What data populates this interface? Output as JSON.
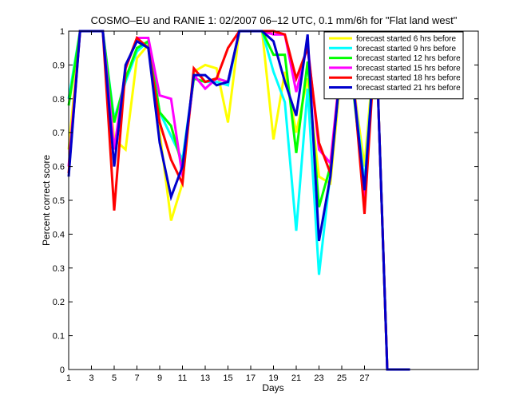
{
  "chart_data": {
    "type": "line",
    "title": "COSMO–EU and RANIE 1: 02/2007 06–12 UTC, 0.1 mm/6h for \"Flat land west\"",
    "xlabel": "Days",
    "ylabel": "Percent correct score",
    "xlim": [
      1,
      37
    ],
    "ylim": [
      0,
      1
    ],
    "x_ticks": [
      1,
      3,
      5,
      7,
      9,
      11,
      13,
      15,
      17,
      19,
      21,
      23,
      25,
      27
    ],
    "y_ticks": [
      0,
      0.1,
      0.2,
      0.3,
      0.4,
      0.5,
      0.6,
      0.7,
      0.8,
      0.9,
      1
    ],
    "x_tick_labels": [
      "1",
      "3",
      "5",
      "7",
      "9",
      "11",
      "13",
      "15",
      "17",
      "19",
      "21",
      "23",
      "25",
      "27"
    ],
    "y_tick_labels": [
      "0",
      "0.1",
      "0.2",
      "0.3",
      "0.4",
      "0.5",
      "0.6",
      "0.7",
      "0.8",
      "0.9",
      "1"
    ],
    "grid": false,
    "legend_position": "top-right",
    "x": [
      1,
      2,
      3,
      4,
      5,
      6,
      7,
      8,
      9,
      10,
      11,
      12,
      13,
      14,
      15,
      16,
      17,
      18,
      19,
      20,
      21,
      22,
      23,
      24,
      25,
      26,
      27,
      28,
      29,
      30,
      31
    ],
    "series": [
      {
        "name": "forecast started 6 hrs before",
        "color": "#ffff00",
        "values": [
          0.65,
          1.0,
          1.0,
          1.0,
          0.68,
          0.65,
          0.92,
          0.96,
          0.7,
          0.44,
          0.55,
          0.88,
          0.9,
          0.89,
          0.73,
          1.0,
          1.0,
          1.0,
          0.68,
          0.88,
          0.7,
          0.86,
          0.57,
          0.55,
          0.9,
          0.85,
          0.6,
          1.0,
          0,
          0,
          0
        ]
      },
      {
        "name": "forecast started 9 hrs before",
        "color": "#00ffff",
        "values": [
          0.8,
          1.0,
          1.0,
          1.0,
          0.74,
          0.85,
          0.94,
          0.97,
          0.76,
          0.69,
          0.62,
          0.86,
          0.85,
          0.85,
          0.84,
          1.0,
          1.0,
          1.0,
          0.88,
          0.79,
          0.41,
          0.83,
          0.28,
          0.58,
          0.92,
          0.85,
          0.55,
          1.0,
          0,
          0,
          0
        ]
      },
      {
        "name": "forecast started 12 hrs before",
        "color": "#00ff00",
        "values": [
          0.78,
          1.0,
          1.0,
          1.0,
          0.73,
          0.86,
          0.95,
          0.97,
          0.76,
          0.72,
          0.6,
          0.86,
          0.85,
          0.86,
          0.85,
          1.0,
          1.0,
          1.0,
          0.93,
          0.93,
          0.64,
          0.91,
          0.48,
          0.6,
          0.92,
          0.83,
          0.52,
          1.0,
          0,
          0,
          0
        ]
      },
      {
        "name": "forecast started 15 hrs before",
        "color": "#ff00ff",
        "values": [
          0.6,
          1.0,
          1.0,
          1.0,
          0.65,
          0.89,
          0.98,
          0.98,
          0.81,
          0.8,
          0.57,
          0.87,
          0.83,
          0.86,
          0.85,
          1.0,
          1.0,
          1.0,
          0.99,
          0.99,
          0.82,
          0.96,
          0.65,
          0.61,
          0.93,
          0.86,
          0.5,
          1.0,
          0,
          0,
          0
        ]
      },
      {
        "name": "forecast started 18 hrs before",
        "color": "#ff0000",
        "values": [
          0.58,
          1.0,
          1.0,
          1.0,
          0.47,
          0.89,
          0.98,
          0.95,
          0.73,
          0.62,
          0.55,
          0.89,
          0.85,
          0.86,
          0.95,
          1.0,
          1.0,
          1.0,
          1.0,
          0.99,
          0.86,
          0.95,
          0.67,
          0.58,
          0.93,
          0.86,
          0.46,
          1.0,
          0,
          0,
          0
        ]
      },
      {
        "name": "forecast started 21 hrs before",
        "color": "#0000cc",
        "values": [
          0.57,
          1.0,
          1.0,
          1.0,
          0.6,
          0.9,
          0.97,
          0.95,
          0.67,
          0.51,
          0.6,
          0.87,
          0.87,
          0.84,
          0.85,
          1.0,
          1.0,
          1.0,
          0.97,
          0.85,
          0.75,
          0.99,
          0.38,
          0.57,
          0.93,
          0.84,
          0.53,
          1.0,
          0,
          0,
          0
        ]
      }
    ]
  }
}
